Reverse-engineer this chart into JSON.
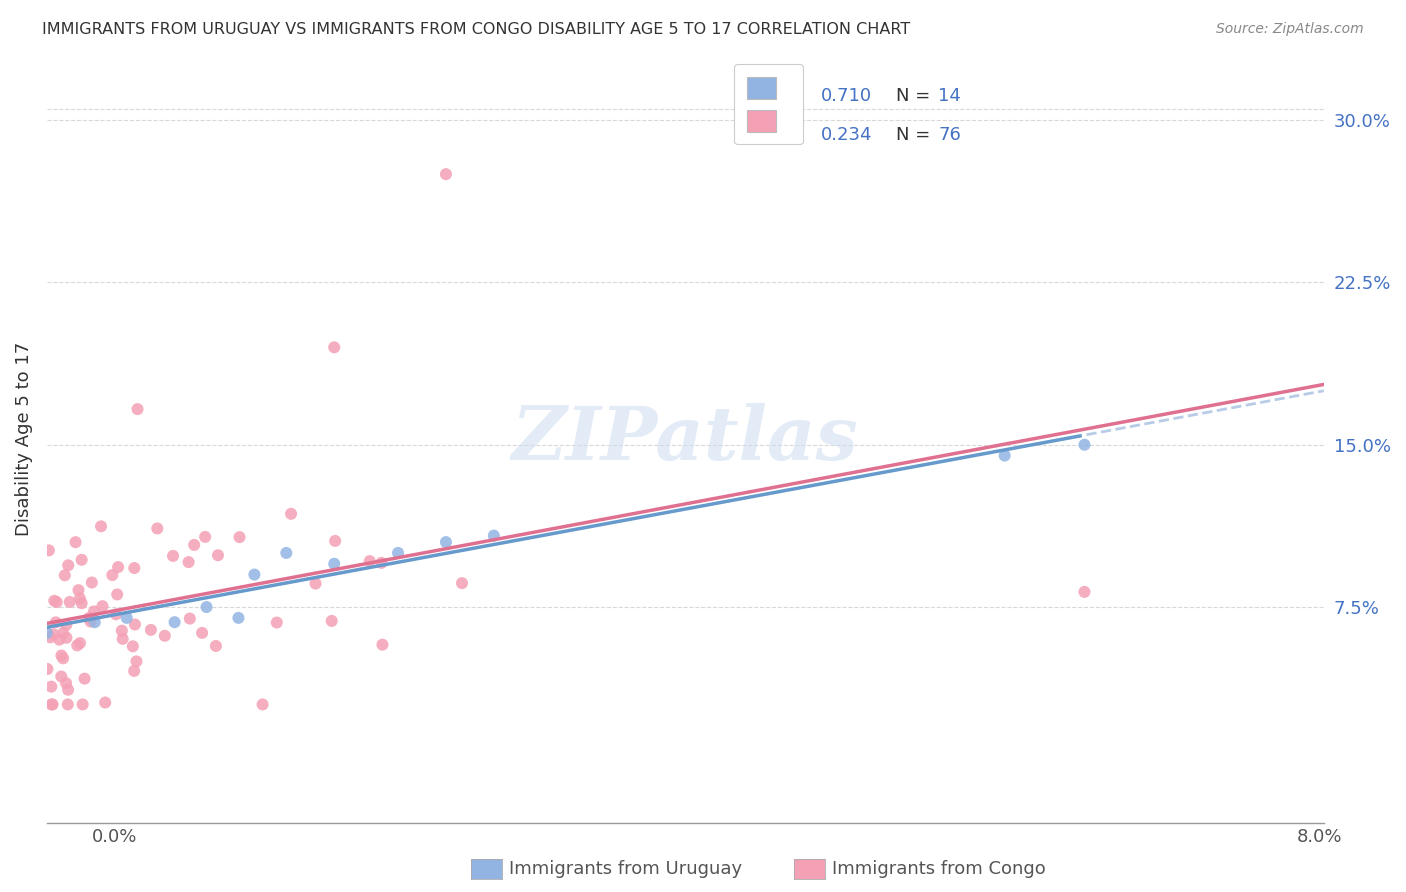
{
  "title": "IMMIGRANTS FROM URUGUAY VS IMMIGRANTS FROM CONGO DISABILITY AGE 5 TO 17 CORRELATION CHART",
  "source": "Source: ZipAtlas.com",
  "ylabel": "Disability Age 5 to 17",
  "xlim": [
    0.0,
    0.08
  ],
  "ylim": [
    -0.025,
    0.33
  ],
  "yticks": [
    0.075,
    0.15,
    0.225,
    0.3
  ],
  "ytick_labels": [
    "7.5%",
    "15.0%",
    "22.5%",
    "30.0%"
  ],
  "legend_r1": "R = 0.710",
  "legend_n1": "N = 14",
  "legend_r2": "R = 0.234",
  "legend_n2": "N = 76",
  "legend_label1": "Immigrants from Uruguay",
  "legend_label2": "Immigrants from Congo",
  "color_uruguay": "#92b4e3",
  "color_congo": "#f4a0b5",
  "trendline_color_uruguay": "#6699cc",
  "trendline_color_congo": "#e07090",
  "trendline_ext_color": "#b8cce8",
  "watermark": "ZIPatlas",
  "background_color": "#ffffff",
  "tick_color": "#4472c4",
  "grid_color": "#d8d8d8",
  "title_color": "#333333",
  "source_color": "#888888",
  "label_color": "#555555"
}
